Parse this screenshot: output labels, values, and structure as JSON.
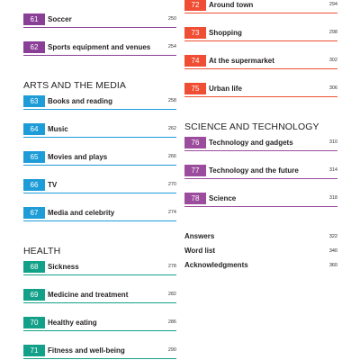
{
  "colors": {
    "sport": "#8a3f97",
    "arts": "#1d9cd8",
    "health": "#13a088",
    "town": "#ef4e34",
    "science": "#9c4c9c"
  },
  "left": {
    "top_entries": [
      {
        "num": "61",
        "title": "Soccer",
        "page": "250"
      },
      {
        "num": "62",
        "title": "Sports equipment and venues",
        "page": "254"
      }
    ],
    "arts": {
      "heading": "ARTS AND THE MEDIA",
      "entries": [
        {
          "num": "63",
          "title": "Books and reading",
          "page": "258"
        },
        {
          "num": "64",
          "title": "Music",
          "page": "262"
        },
        {
          "num": "65",
          "title": "Movies and plays",
          "page": "266"
        },
        {
          "num": "66",
          "title": "TV",
          "page": "270"
        },
        {
          "num": "67",
          "title": "Media and celebrity",
          "page": "274"
        }
      ]
    },
    "health": {
      "heading": "HEALTH",
      "entries": [
        {
          "num": "68",
          "title": "Sickness",
          "page": "278"
        },
        {
          "num": "69",
          "title": "Medicine and treatment",
          "page": "282"
        },
        {
          "num": "70",
          "title": "Healthy eating",
          "page": "286"
        },
        {
          "num": "71",
          "title": "Fitness and well-being",
          "page": "290"
        }
      ]
    }
  },
  "right": {
    "town_entries": [
      {
        "num": "72",
        "title": "Around town",
        "page": "294"
      },
      {
        "num": "73",
        "title": "Shopping",
        "page": "298"
      },
      {
        "num": "74",
        "title": "At the supermarket",
        "page": "302"
      },
      {
        "num": "75",
        "title": "Urban life",
        "page": "306"
      }
    ],
    "science": {
      "heading": "SCIENCE AND TECHNOLOGY",
      "entries": [
        {
          "num": "76",
          "title": "Technology and gadgets",
          "page": "310"
        },
        {
          "num": "77",
          "title": "Technology and the future",
          "page": "314"
        },
        {
          "num": "78",
          "title": "Science",
          "page": "318"
        }
      ]
    },
    "back_matter": [
      {
        "label": "Answers",
        "page": "322"
      },
      {
        "label": "Word list",
        "page": "340"
      },
      {
        "label": "Acknowledgments",
        "page": "360"
      }
    ]
  }
}
